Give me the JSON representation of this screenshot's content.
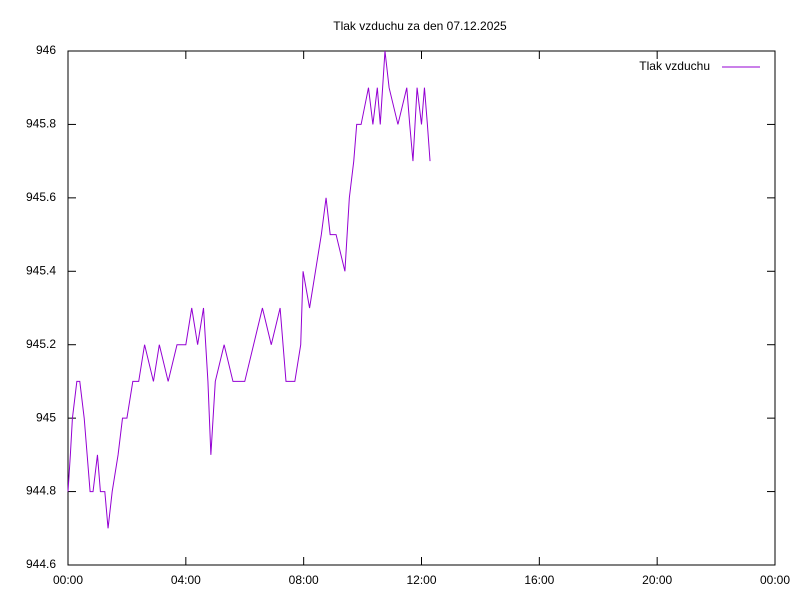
{
  "chart_data": {
    "type": "line",
    "title": "Tlak vzduchu za den 07.12.2025",
    "x": [
      0,
      0.08,
      0.15,
      0.3,
      0.4,
      0.55,
      0.65,
      0.75,
      0.85,
      1.0,
      1.1,
      1.25,
      1.36,
      1.5,
      1.7,
      1.85,
      2.0,
      2.2,
      2.4,
      2.6,
      2.9,
      3.1,
      3.4,
      3.7,
      4.0,
      4.2,
      4.4,
      4.6,
      4.75,
      4.85,
      5.0,
      5.3,
      5.6,
      6.0,
      6.3,
      6.6,
      6.9,
      7.2,
      7.4,
      7.7,
      7.9,
      7.98,
      8.2,
      8.4,
      8.6,
      8.76,
      8.9,
      9.1,
      9.4,
      9.55,
      9.7,
      9.8,
      9.95,
      10.2,
      10.35,
      10.5,
      10.6,
      10.76,
      10.9,
      11.2,
      11.5,
      11.6,
      11.71,
      11.85,
      12.0,
      12.1,
      12.2,
      12.29
    ],
    "series": [
      {
        "name": "Tlak vzduchu",
        "color": "#9400d3",
        "values": [
          944.8,
          944.9,
          945.0,
          945.1,
          945.1,
          945.0,
          944.9,
          944.8,
          944.8,
          944.9,
          944.8,
          944.8,
          944.7,
          944.8,
          944.9,
          945.0,
          945.0,
          945.1,
          945.1,
          945.2,
          945.1,
          945.2,
          945.1,
          945.2,
          945.2,
          945.3,
          945.2,
          945.3,
          945.1,
          944.9,
          945.1,
          945.2,
          945.1,
          945.1,
          945.2,
          945.3,
          945.2,
          945.3,
          945.1,
          945.1,
          945.2,
          945.4,
          945.3,
          945.4,
          945.5,
          945.6,
          945.5,
          945.5,
          945.4,
          945.6,
          945.7,
          945.8,
          945.8,
          945.9,
          945.8,
          945.9,
          945.8,
          946.0,
          945.9,
          945.8,
          945.9,
          945.8,
          945.7,
          945.9,
          945.8,
          945.9,
          945.8,
          945.7
        ]
      }
    ],
    "xlim": [
      0,
      24
    ],
    "xticks": [
      {
        "value": 0,
        "label": "00:00"
      },
      {
        "value": 4,
        "label": "04:00"
      },
      {
        "value": 8,
        "label": "08:00"
      },
      {
        "value": 12,
        "label": "12:00"
      },
      {
        "value": 16,
        "label": "16:00"
      },
      {
        "value": 20,
        "label": "20:00"
      },
      {
        "value": 24,
        "label": "00:00"
      }
    ],
    "ylim": [
      944.6,
      946
    ],
    "yticks": [
      944.6,
      944.8,
      945,
      945.2,
      945.4,
      945.6,
      945.8,
      946
    ],
    "legend": "top-right"
  }
}
